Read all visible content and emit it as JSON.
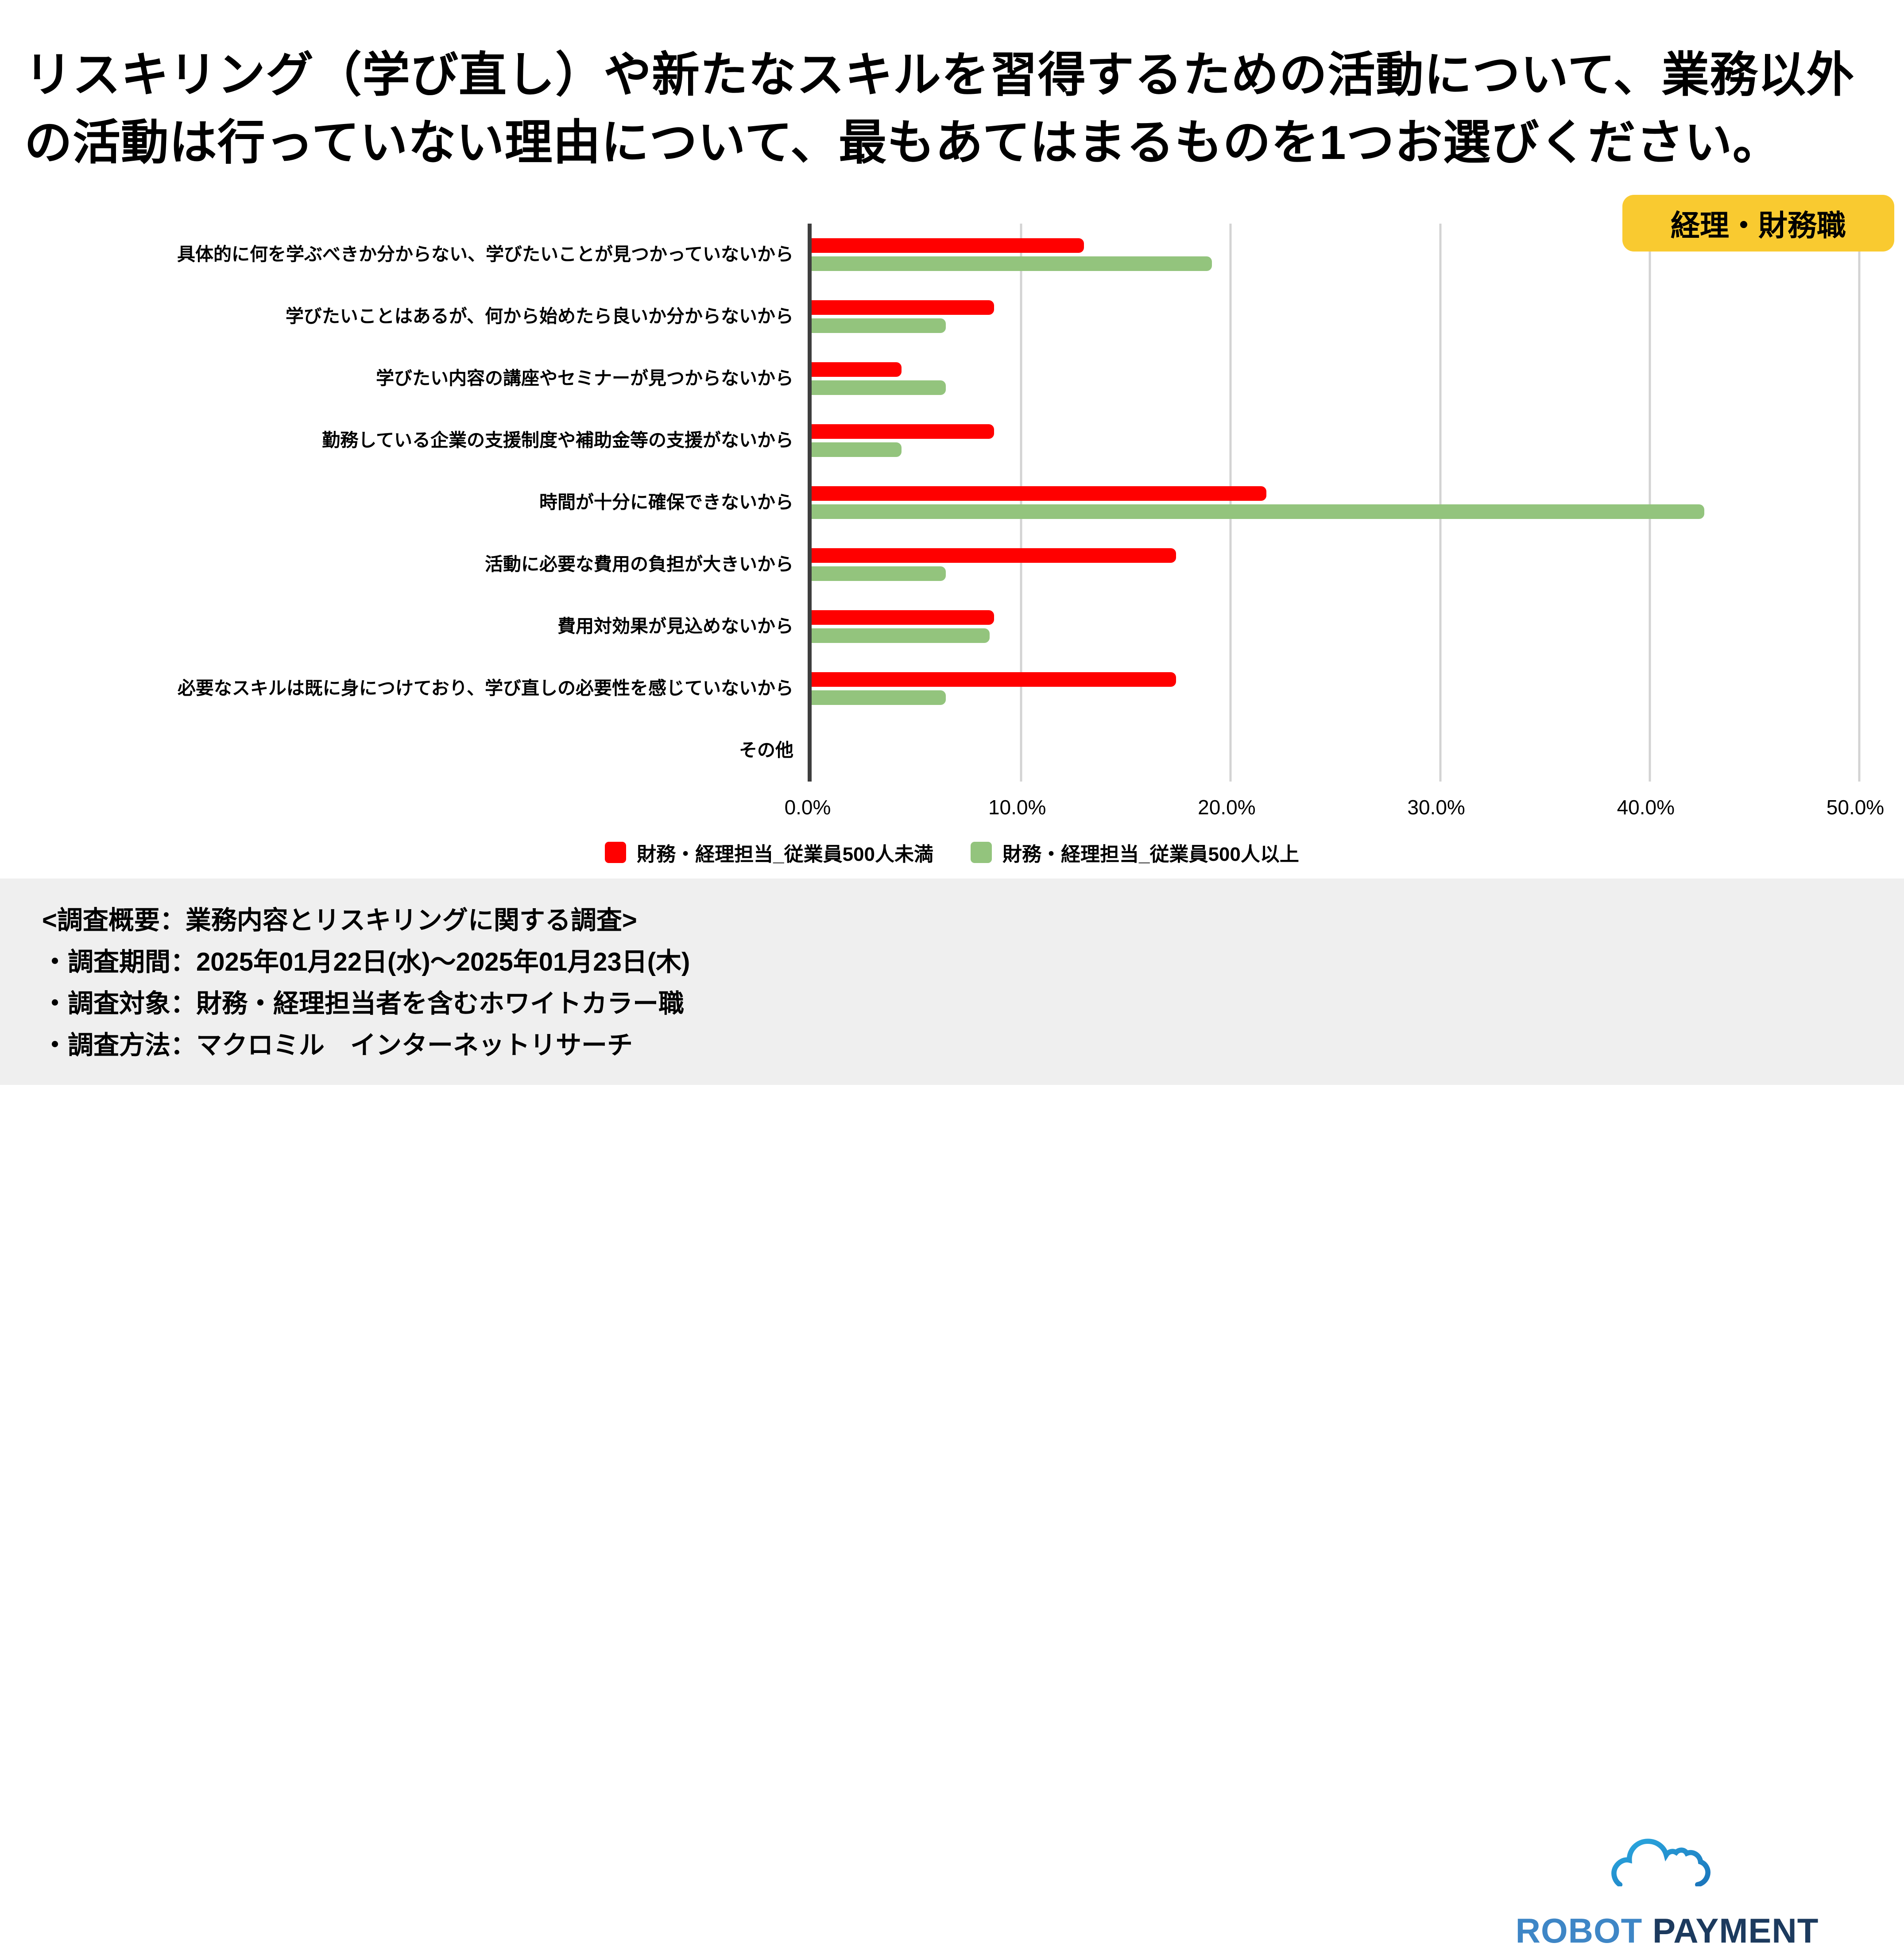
{
  "title": "リスキリング（学び直し）や新たなスキルを習得するための活動について、業務以外の活動は行っていない理由について、最もあてはまるものを1つお選びください。",
  "badge": {
    "label": "経理・財務職",
    "bg_color": "#F9CA30",
    "text_color": "#000000"
  },
  "chart_data": {
    "type": "bar",
    "orientation": "horizontal",
    "categories": [
      "具体的に何を学ぶべきか分からない、学びたいことが見つかっていないから",
      "学びたいことはあるが、何から始めたら良いか分からないから",
      "学びたい内容の講座やセミナーが見つからないから",
      "勤務している企業の支援制度や補助金等の支援がないから",
      "時間が十分に確保できないから",
      "活動に必要な費用の負担が大きいから",
      "費用対効果が見込めないから",
      "必要なスキルは既に身につけており、学び直しの必要性を感じていないから",
      "その他"
    ],
    "series": [
      {
        "name": "財務・経理担当_従業員500人未満",
        "color": "#FF0000",
        "values": [
          13.0,
          8.7,
          4.3,
          8.7,
          21.7,
          17.4,
          8.7,
          17.4,
          0.0
        ]
      },
      {
        "name": "財務・経理担当_従業員500人以上",
        "color": "#93C47D",
        "values": [
          19.1,
          6.4,
          6.4,
          4.3,
          42.6,
          6.4,
          8.5,
          6.4,
          0.0
        ]
      }
    ],
    "xlim": [
      0,
      50
    ],
    "x_ticks": [
      "0.0%",
      "10.0%",
      "20.0%",
      "30.0%",
      "40.0%",
      "50.0%"
    ],
    "grid": true,
    "gridline_color": "#D3D3D3",
    "axis_color": "#3E3E3E",
    "legend_position": "bottom"
  },
  "footer": {
    "bg_color": "#EFEFEF",
    "lines": [
      "<調査概要：業務内容とリスキリングに関する調査>",
      "・調査期間：2025年01月22日(水)～2025年01月23日(木)",
      "・調査対象：財務・経理担当者を含むホワイトカラー職",
      "・調査方法：マクロミル　インターネットリサーチ"
    ]
  },
  "logo": {
    "robot": "ROBOT",
    "payment": "PAYMENT"
  }
}
